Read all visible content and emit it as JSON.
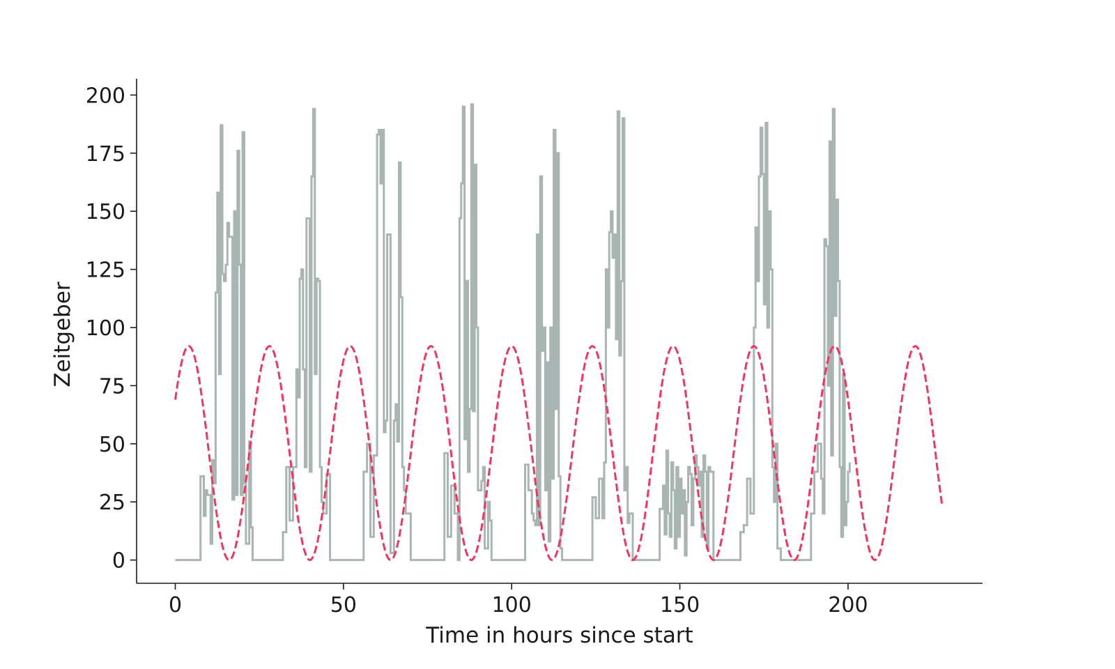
{
  "chart_data": {
    "type": "line",
    "title": "",
    "xlabel": "Time in hours since start",
    "ylabel": "Zeitgeber",
    "xlim": [
      -11.5,
      240
    ],
    "ylim": [
      -10,
      207
    ],
    "xticks": [
      0,
      50,
      100,
      150,
      200
    ],
    "yticks": [
      0,
      25,
      50,
      75,
      100,
      125,
      150,
      175,
      200
    ],
    "grid": false,
    "legend": "none",
    "series": [
      {
        "style": "step",
        "color": "#a9b5b3",
        "points": [
          [
            0,
            0
          ],
          [
            7.5,
            0
          ],
          [
            7.5,
            36
          ],
          [
            8.5,
            19
          ],
          [
            9,
            30
          ],
          [
            9.5,
            28
          ],
          [
            10.5,
            7
          ],
          [
            11,
            43
          ],
          [
            11.5,
            33
          ],
          [
            12,
            115
          ],
          [
            12.5,
            158
          ],
          [
            13,
            80
          ],
          [
            13.5,
            187
          ],
          [
            14,
            123
          ],
          [
            14.5,
            120
          ],
          [
            15,
            127
          ],
          [
            15.5,
            145
          ],
          [
            16,
            139
          ],
          [
            17,
            26
          ],
          [
            17.5,
            150
          ],
          [
            18,
            28
          ],
          [
            18.5,
            176
          ],
          [
            19,
            127
          ],
          [
            19.5,
            28
          ],
          [
            20,
            184
          ],
          [
            20.5,
            33
          ],
          [
            21,
            7
          ],
          [
            22,
            51
          ],
          [
            22.5,
            14
          ],
          [
            23,
            0
          ],
          [
            32,
            0
          ],
          [
            32,
            12
          ],
          [
            33,
            40
          ],
          [
            34,
            17
          ],
          [
            35,
            40
          ],
          [
            36,
            82
          ],
          [
            36.5,
            70
          ],
          [
            37,
            121
          ],
          [
            37.5,
            125
          ],
          [
            38,
            82
          ],
          [
            38.5,
            40
          ],
          [
            39,
            147
          ],
          [
            40,
            38
          ],
          [
            40.5,
            165
          ],
          [
            41,
            194
          ],
          [
            41.5,
            80
          ],
          [
            42,
            121
          ],
          [
            42.5,
            120
          ],
          [
            43,
            40
          ],
          [
            43.5,
            25
          ],
          [
            44,
            20
          ],
          [
            45,
            37
          ],
          [
            46,
            0
          ],
          [
            56,
            0
          ],
          [
            56,
            38
          ],
          [
            57,
            50
          ],
          [
            58,
            10
          ],
          [
            59,
            45
          ],
          [
            60,
            183
          ],
          [
            60.5,
            185
          ],
          [
            61,
            162
          ],
          [
            61.5,
            185
          ],
          [
            62,
            55
          ],
          [
            62.5,
            60
          ],
          [
            63,
            140
          ],
          [
            64,
            3
          ],
          [
            65,
            60
          ],
          [
            65.5,
            67
          ],
          [
            66,
            51
          ],
          [
            66.5,
            171
          ],
          [
            67,
            113
          ],
          [
            67.5,
            40
          ],
          [
            68,
            30
          ],
          [
            68.5,
            20
          ],
          [
            70,
            0
          ],
          [
            80,
            0
          ],
          [
            80,
            46
          ],
          [
            81,
            10
          ],
          [
            82,
            32
          ],
          [
            83,
            20
          ],
          [
            84,
            0
          ],
          [
            84.5,
            147
          ],
          [
            85,
            162
          ],
          [
            85.5,
            195
          ],
          [
            86,
            52
          ],
          [
            86.5,
            120
          ],
          [
            87,
            38
          ],
          [
            87.5,
            65
          ],
          [
            88,
            196
          ],
          [
            88.5,
            64
          ],
          [
            89,
            170
          ],
          [
            89.5,
            100
          ],
          [
            90,
            30
          ],
          [
            91,
            34
          ],
          [
            91.5,
            40
          ],
          [
            92,
            5
          ],
          [
            93,
            25
          ],
          [
            93.5,
            17
          ],
          [
            94,
            0
          ],
          [
            104,
            0
          ],
          [
            104,
            41
          ],
          [
            105,
            30
          ],
          [
            106,
            20
          ],
          [
            106.5,
            17
          ],
          [
            107,
            15
          ],
          [
            107.5,
            140
          ],
          [
            108,
            15
          ],
          [
            108.5,
            165
          ],
          [
            109,
            90
          ],
          [
            109.5,
            100
          ],
          [
            110,
            30
          ],
          [
            110.5,
            85
          ],
          [
            111,
            8
          ],
          [
            111.5,
            100
          ],
          [
            112,
            35
          ],
          [
            112.5,
            185
          ],
          [
            113,
            65
          ],
          [
            113.5,
            175
          ],
          [
            114,
            36
          ],
          [
            114.5,
            5
          ],
          [
            115,
            0
          ],
          [
            124,
            0
          ],
          [
            124,
            27
          ],
          [
            125,
            18
          ],
          [
            126,
            35
          ],
          [
            127,
            18
          ],
          [
            127.5,
            42
          ],
          [
            128,
            125
          ],
          [
            128.5,
            100
          ],
          [
            129,
            141
          ],
          [
            129.5,
            150
          ],
          [
            130,
            130
          ],
          [
            130.5,
            140
          ],
          [
            131,
            95
          ],
          [
            131.5,
            193
          ],
          [
            132,
            88
          ],
          [
            132.5,
            120
          ],
          [
            133,
            190
          ],
          [
            133.5,
            30
          ],
          [
            134,
            40
          ],
          [
            134.5,
            16
          ],
          [
            135,
            20
          ],
          [
            136,
            0
          ],
          [
            144,
            0
          ],
          [
            144,
            22
          ],
          [
            145,
            32
          ],
          [
            145.5,
            11
          ],
          [
            146,
            47
          ],
          [
            146.5,
            20
          ],
          [
            147,
            10
          ],
          [
            147.5,
            42
          ],
          [
            148,
            30
          ],
          [
            148.5,
            5
          ],
          [
            149,
            40
          ],
          [
            149.5,
            10
          ],
          [
            150,
            35
          ],
          [
            150.5,
            20
          ],
          [
            151,
            30
          ],
          [
            151.5,
            2
          ],
          [
            152,
            25
          ],
          [
            152.5,
            40
          ],
          [
            153,
            37
          ],
          [
            153.5,
            15
          ],
          [
            154,
            35
          ],
          [
            154.5,
            45
          ],
          [
            155,
            40
          ],
          [
            155.5,
            32
          ],
          [
            156,
            38
          ],
          [
            156.5,
            10
          ],
          [
            157,
            45
          ],
          [
            157.5,
            38
          ],
          [
            158,
            5
          ],
          [
            158.5,
            40
          ],
          [
            159,
            38
          ],
          [
            160,
            0
          ],
          [
            168,
            0
          ],
          [
            168,
            12
          ],
          [
            169,
            15
          ],
          [
            170,
            35
          ],
          [
            171,
            20
          ],
          [
            172,
            100
          ],
          [
            172.5,
            143
          ],
          [
            173,
            120
          ],
          [
            173.5,
            165
          ],
          [
            174,
            186
          ],
          [
            174.5,
            166
          ],
          [
            175,
            110
          ],
          [
            175.5,
            188
          ],
          [
            176,
            100
          ],
          [
            176.5,
            150
          ],
          [
            177,
            125
          ],
          [
            177.5,
            40
          ],
          [
            178,
            25
          ],
          [
            178.5,
            50
          ],
          [
            179,
            5
          ],
          [
            180,
            0
          ],
          [
            189,
            0
          ],
          [
            189,
            20
          ],
          [
            190,
            38
          ],
          [
            191,
            50
          ],
          [
            192,
            35
          ],
          [
            192.5,
            20
          ],
          [
            193,
            138
          ],
          [
            193.5,
            135
          ],
          [
            194,
            75
          ],
          [
            194.5,
            180
          ],
          [
            195,
            45
          ],
          [
            195.5,
            194
          ],
          [
            196,
            105
          ],
          [
            196.5,
            155
          ],
          [
            197,
            120
          ],
          [
            197.5,
            40
          ],
          [
            198,
            10
          ],
          [
            198.5,
            80
          ],
          [
            199,
            15
          ],
          [
            199.5,
            25
          ],
          [
            200,
            38
          ],
          [
            200.5,
            42
          ]
        ]
      },
      {
        "style": "dashed",
        "color": "#f0365f",
        "function": "sine",
        "mean": 46,
        "amplitude": 46,
        "period": 24,
        "peak_at": 4,
        "x_range": [
          0,
          228
        ]
      }
    ]
  }
}
